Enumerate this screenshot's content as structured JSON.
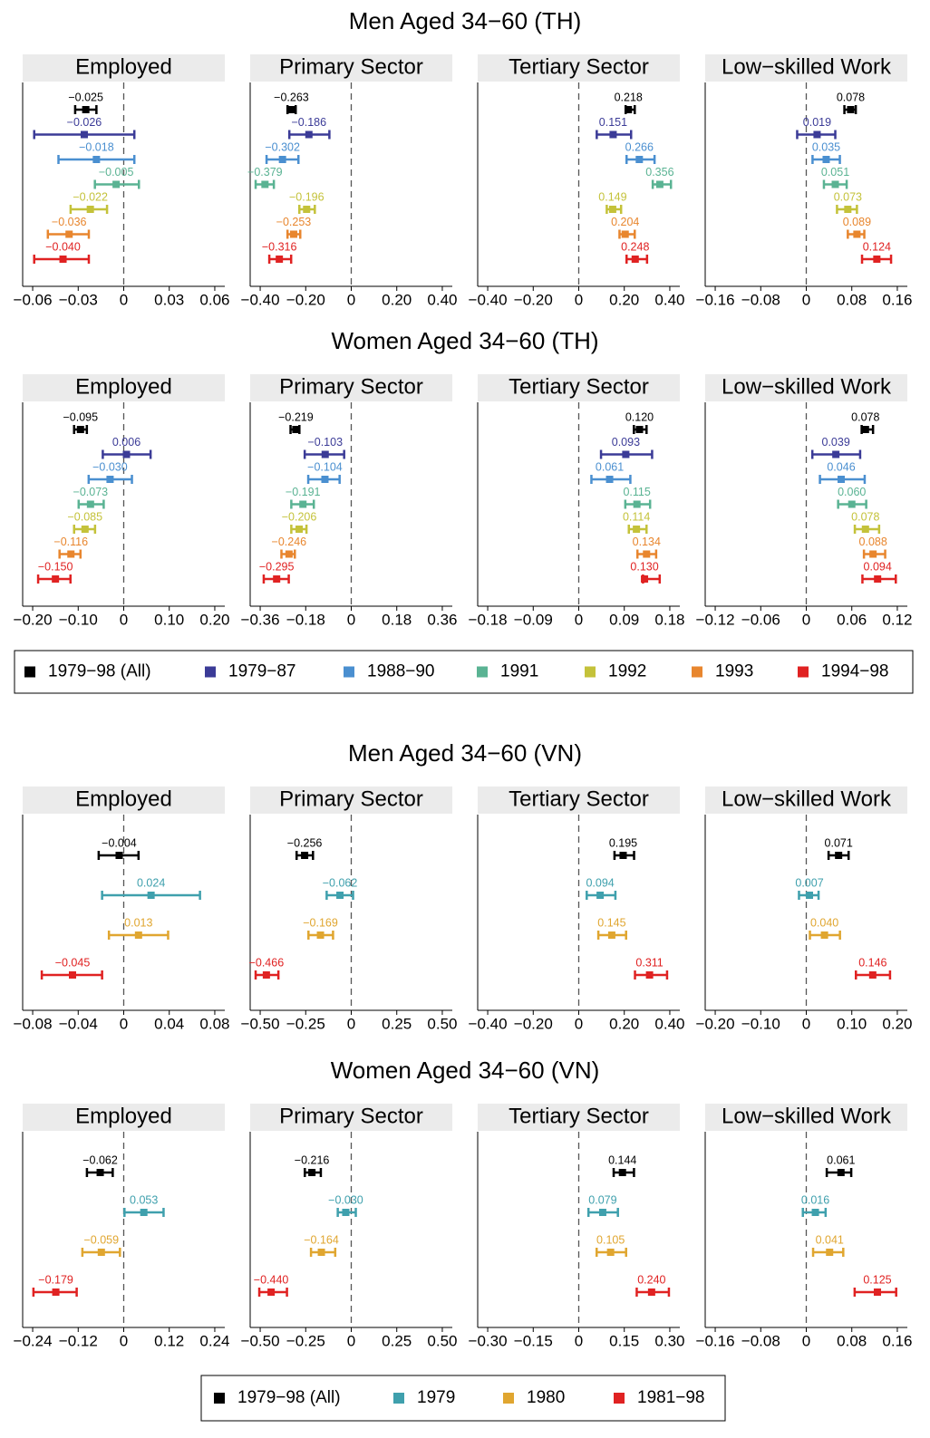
{
  "chart_data": [
    {
      "type": "forest",
      "title": "Men Aged 34−60 (TH)",
      "series": [
        {
          "name": "1979−98 (All)",
          "color": "#000000"
        },
        {
          "name": "1979−87",
          "color": "#3b3b97"
        },
        {
          "name": "1988−90",
          "color": "#4a8fd0"
        },
        {
          "name": "1991",
          "color": "#5ab393"
        },
        {
          "name": "1992",
          "color": "#c4c23a"
        },
        {
          "name": "1993",
          "color": "#e8862e"
        },
        {
          "name": "1994−98",
          "color": "#e02222"
        }
      ],
      "panels": [
        {
          "title": "Employed",
          "xlim": [
            -0.0666,
            0.0666
          ],
          "xticks": [
            {
              "value": -0.06,
              "label": "−0.06"
            },
            {
              "value": -0.03,
              "label": "−0.03"
            },
            0,
            0.03,
            0.06
          ],
          "values": [
            -0.025,
            -0.026,
            -0.018,
            -0.005,
            -0.022,
            -0.036,
            -0.04
          ],
          "value_labels": [
            "−0.025",
            "−0.026",
            "−0.018",
            "−0.005",
            "−0.022",
            "−0.036",
            "−0.040"
          ],
          "lower": [
            -0.032,
            -0.059,
            -0.043,
            -0.019,
            -0.035,
            -0.05,
            -0.059
          ],
          "upper": [
            -0.018,
            0.007,
            0.007,
            0.01,
            -0.011,
            -0.023,
            -0.023
          ]
        },
        {
          "title": "Primary Sector",
          "xlim": [
            -0.444,
            0.444
          ],
          "xticks": [
            {
              "value": -0.4,
              "label": "−0.40"
            },
            {
              "value": -0.2,
              "label": "−0.20"
            },
            0,
            {
              "value": 0.2,
              "label": "0.20"
            },
            {
              "value": 0.4,
              "label": "0.40"
            }
          ],
          "values": [
            -0.263,
            -0.186,
            -0.302,
            -0.379,
            -0.196,
            -0.253,
            -0.316
          ],
          "value_labels": [
            "−0.263",
            "−0.186",
            "−0.302",
            "−0.379",
            "−0.196",
            "−0.253",
            "−0.316"
          ],
          "lower": [
            -0.28,
            -0.272,
            -0.372,
            -0.42,
            -0.228,
            -0.28,
            -0.36
          ],
          "upper": [
            -0.244,
            -0.096,
            -0.232,
            -0.34,
            -0.16,
            -0.224,
            -0.264
          ]
        },
        {
          "title": "Tertiary Sector",
          "xlim": [
            -0.444,
            0.444
          ],
          "xticks": [
            {
              "value": -0.4,
              "label": "−0.40"
            },
            {
              "value": -0.2,
              "label": "−0.20"
            },
            0,
            {
              "value": 0.2,
              "label": "0.20"
            },
            {
              "value": 0.4,
              "label": "0.40"
            }
          ],
          "values": [
            0.218,
            0.151,
            0.266,
            0.356,
            0.149,
            0.204,
            0.248
          ],
          "value_labels": [
            "0.218",
            "0.151",
            "0.266",
            "0.356",
            "0.149",
            "0.204",
            "0.248"
          ],
          "lower": [
            0.206,
            0.079,
            0.21,
            0.325,
            0.123,
            0.179,
            0.21
          ],
          "upper": [
            0.246,
            0.23,
            0.333,
            0.405,
            0.186,
            0.246,
            0.3
          ]
        },
        {
          "title": "Low−skilled Work",
          "xlim": [
            -0.1776,
            0.1776
          ],
          "xticks": [
            {
              "value": -0.16,
              "label": "−0.16"
            },
            {
              "value": -0.08,
              "label": "−0.08"
            },
            0,
            0.08,
            0.16
          ],
          "values": [
            0.078,
            0.019,
            0.035,
            0.051,
            0.073,
            0.089,
            0.124
          ],
          "value_labels": [
            "0.078",
            "0.019",
            "0.035",
            "0.051",
            "0.073",
            "0.089",
            "0.124"
          ],
          "lower": [
            0.067,
            -0.016,
            0.011,
            0.031,
            0.054,
            0.073,
            0.098
          ],
          "upper": [
            0.087,
            0.051,
            0.059,
            0.071,
            0.089,
            0.102,
            0.149
          ]
        }
      ]
    },
    {
      "type": "forest",
      "title": "Women Aged 34−60 (TH)",
      "colors": [
        "#000000",
        "#3b3b97",
        "#4a8fd0",
        "#5ab393",
        "#c4c23a",
        "#e8862e",
        "#e02222"
      ],
      "panels": [
        {
          "title": "Employed",
          "xlim": [
            -0.222,
            0.222
          ],
          "xticks": [
            {
              "value": -0.2,
              "label": "−0.20"
            },
            {
              "value": -0.1,
              "label": "−0.10"
            },
            0,
            {
              "value": 0.1,
              "label": "0.10"
            },
            {
              "value": 0.2,
              "label": "0.20"
            }
          ],
          "values": [
            -0.095,
            0.006,
            -0.03,
            -0.073,
            -0.085,
            -0.116,
            -0.15
          ],
          "value_labels": [
            "−0.095",
            "0.006",
            "−0.030",
            "−0.073",
            "−0.085",
            "−0.116",
            "−0.150"
          ],
          "lower": [
            -0.109,
            -0.046,
            -0.077,
            -0.099,
            -0.109,
            -0.141,
            -0.188
          ],
          "upper": [
            -0.081,
            0.059,
            0.018,
            -0.044,
            -0.063,
            -0.095,
            -0.117
          ]
        },
        {
          "title": "Primary Sector",
          "xlim": [
            -0.3996,
            0.3996
          ],
          "xticks": [
            {
              "value": -0.36,
              "label": "−0.36"
            },
            {
              "value": -0.18,
              "label": "−0.18"
            },
            0,
            0.18,
            0.36
          ],
          "values": [
            -0.219,
            -0.103,
            -0.104,
            -0.191,
            -0.206,
            -0.246,
            -0.295
          ],
          "value_labels": [
            "−0.219",
            "−0.103",
            "−0.104",
            "−0.191",
            "−0.206",
            "−0.246",
            "−0.295"
          ],
          "lower": [
            -0.24,
            -0.184,
            -0.17,
            -0.237,
            -0.237,
            -0.276,
            -0.346
          ],
          "upper": [
            -0.205,
            -0.028,
            -0.046,
            -0.148,
            -0.177,
            -0.223,
            -0.247
          ]
        },
        {
          "title": "Tertiary Sector",
          "xlim": [
            -0.1998,
            0.1998
          ],
          "xticks": [
            {
              "value": -0.18,
              "label": "−0.18"
            },
            {
              "value": -0.09,
              "label": "−0.09"
            },
            0,
            0.09,
            0.18
          ],
          "values": [
            0.12,
            0.093,
            0.061,
            0.115,
            0.114,
            0.134,
            0.13
          ],
          "value_labels": [
            "0.120",
            "0.093",
            "0.061",
            "0.115",
            "0.114",
            "0.134",
            "0.130"
          ],
          "lower": [
            0.109,
            0.044,
            0.025,
            0.092,
            0.099,
            0.116,
            0.127
          ],
          "upper": [
            0.134,
            0.145,
            0.102,
            0.141,
            0.134,
            0.153,
            0.16
          ]
        },
        {
          "title": "Low−skilled Work",
          "xlim": [
            -0.1332,
            0.1332
          ],
          "xticks": [
            {
              "value": -0.12,
              "label": "−0.12"
            },
            {
              "value": -0.06,
              "label": "−0.06"
            },
            0,
            0.06,
            0.12
          ],
          "values": [
            0.078,
            0.039,
            0.046,
            0.06,
            0.078,
            0.088,
            0.094
          ],
          "value_labels": [
            "0.078",
            "0.039",
            "0.046",
            "0.060",
            "0.078",
            "0.088",
            "0.094"
          ],
          "lower": [
            0.073,
            0.008,
            0.018,
            0.042,
            0.064,
            0.076,
            0.074
          ],
          "upper": [
            0.088,
            0.071,
            0.077,
            0.079,
            0.096,
            0.104,
            0.118
          ]
        }
      ]
    },
    {
      "type": "forest",
      "title": "Men Aged 34−60 (VN)",
      "series": [
        {
          "name": "1979−98 (All)",
          "color": "#000000"
        },
        {
          "name": "1979",
          "color": "#3fa0ad"
        },
        {
          "name": "1980",
          "color": "#e0a630"
        },
        {
          "name": "1981−98",
          "color": "#e02222"
        }
      ],
      "panels": [
        {
          "title": "Employed",
          "xlim": [
            -0.0888,
            0.0888
          ],
          "xticks": [
            {
              "value": -0.08,
              "label": "−0.08"
            },
            {
              "value": -0.04,
              "label": "−0.04"
            },
            0,
            0.04,
            0.08
          ],
          "values": [
            -0.004,
            0.024,
            0.013,
            -0.045
          ],
          "value_labels": [
            "−0.004",
            "0.024",
            "0.013",
            "−0.045"
          ],
          "lower": [
            -0.022,
            -0.019,
            -0.013,
            -0.072
          ],
          "upper": [
            0.013,
            0.067,
            0.039,
            -0.019
          ]
        },
        {
          "title": "Primary Sector",
          "xlim": [
            -0.555,
            0.555
          ],
          "xticks": [
            {
              "value": -0.5,
              "label": "−0.50"
            },
            {
              "value": -0.25,
              "label": "−0.25"
            },
            0,
            0.25,
            {
              "value": 0.5,
              "label": "0.50"
            }
          ],
          "values": [
            -0.256,
            -0.062,
            -0.169,
            -0.466
          ],
          "value_labels": [
            "−0.256",
            "−0.062",
            "−0.169",
            "−0.466"
          ],
          "lower": [
            -0.3,
            -0.135,
            -0.235,
            -0.525
          ],
          "upper": [
            -0.21,
            0.01,
            -0.1,
            -0.4
          ]
        },
        {
          "title": "Tertiary Sector",
          "xlim": [
            -0.444,
            0.444
          ],
          "xticks": [
            {
              "value": -0.4,
              "label": "−0.40"
            },
            {
              "value": -0.2,
              "label": "−0.20"
            },
            0,
            {
              "value": 0.2,
              "label": "0.20"
            },
            {
              "value": 0.4,
              "label": "0.40"
            }
          ],
          "values": [
            0.195,
            0.094,
            0.145,
            0.311
          ],
          "value_labels": [
            "0.195",
            "0.094",
            "0.145",
            "0.311"
          ],
          "lower": [
            0.157,
            0.035,
            0.086,
            0.247
          ],
          "upper": [
            0.243,
            0.161,
            0.208,
            0.388
          ]
        },
        {
          "title": "Low−skilled Work",
          "xlim": [
            -0.222,
            0.222
          ],
          "xticks": [
            {
              "value": -0.2,
              "label": "−0.20"
            },
            {
              "value": -0.1,
              "label": "−0.10"
            },
            0,
            {
              "value": 0.1,
              "label": "0.10"
            },
            {
              "value": 0.2,
              "label": "0.20"
            }
          ],
          "values": [
            0.071,
            0.007,
            0.04,
            0.146
          ],
          "value_labels": [
            "0.071",
            "0.007",
            "0.040",
            "0.146"
          ],
          "lower": [
            0.049,
            -0.016,
            0.008,
            0.109
          ],
          "upper": [
            0.093,
            0.027,
            0.074,
            0.184
          ]
        }
      ]
    },
    {
      "type": "forest",
      "title": "Women Aged 34−60 (VN)",
      "colors": [
        "#000000",
        "#3fa0ad",
        "#e0a630",
        "#e02222"
      ],
      "panels": [
        {
          "title": "Employed",
          "xlim": [
            -0.2664,
            0.2664
          ],
          "xticks": [
            {
              "value": -0.24,
              "label": "−0.24"
            },
            {
              "value": -0.12,
              "label": "−0.12"
            },
            0,
            0.12,
            0.24
          ],
          "values": [
            -0.062,
            0.053,
            -0.059,
            -0.179
          ],
          "value_labels": [
            "−0.062",
            "0.053",
            "−0.059",
            "−0.179"
          ],
          "lower": [
            -0.097,
            0.002,
            -0.109,
            -0.238
          ],
          "upper": [
            -0.029,
            0.105,
            -0.01,
            -0.124
          ]
        },
        {
          "title": "Primary Sector",
          "xlim": [
            -0.555,
            0.555
          ],
          "xticks": [
            {
              "value": -0.5,
              "label": "−0.50"
            },
            {
              "value": -0.25,
              "label": "−0.25"
            },
            0,
            0.25,
            {
              "value": 0.5,
              "label": "0.50"
            }
          ],
          "values": [
            -0.216,
            -0.03,
            -0.164,
            -0.44
          ],
          "value_labels": [
            "−0.216",
            "−0.030",
            "−0.164",
            "−0.440"
          ],
          "lower": [
            -0.255,
            -0.074,
            -0.221,
            -0.505
          ],
          "upper": [
            -0.167,
            0.025,
            -0.088,
            -0.353
          ]
        },
        {
          "title": "Tertiary Sector",
          "xlim": [
            -0.333,
            0.333
          ],
          "xticks": [
            {
              "value": -0.3,
              "label": "−0.30"
            },
            {
              "value": -0.15,
              "label": "−0.15"
            },
            0,
            0.15,
            {
              "value": 0.3,
              "label": "0.30"
            }
          ],
          "values": [
            0.144,
            0.079,
            0.105,
            0.24
          ],
          "value_labels": [
            "0.144",
            "0.079",
            "0.105",
            "0.240"
          ],
          "lower": [
            0.115,
            0.032,
            0.059,
            0.191
          ],
          "upper": [
            0.182,
            0.129,
            0.156,
            0.297
          ]
        },
        {
          "title": "Low−skilled Work",
          "xlim": [
            -0.1776,
            0.1776
          ],
          "xticks": [
            {
              "value": -0.16,
              "label": "−0.16"
            },
            {
              "value": -0.08,
              "label": "−0.08"
            },
            0,
            0.08,
            0.16
          ],
          "values": [
            0.061,
            0.016,
            0.041,
            0.125
          ],
          "value_labels": [
            "0.061",
            "0.016",
            "0.041",
            "0.125"
          ],
          "lower": [
            0.036,
            -0.006,
            0.012,
            0.085
          ],
          "upper": [
            0.079,
            0.034,
            0.065,
            0.158
          ]
        }
      ]
    }
  ]
}
